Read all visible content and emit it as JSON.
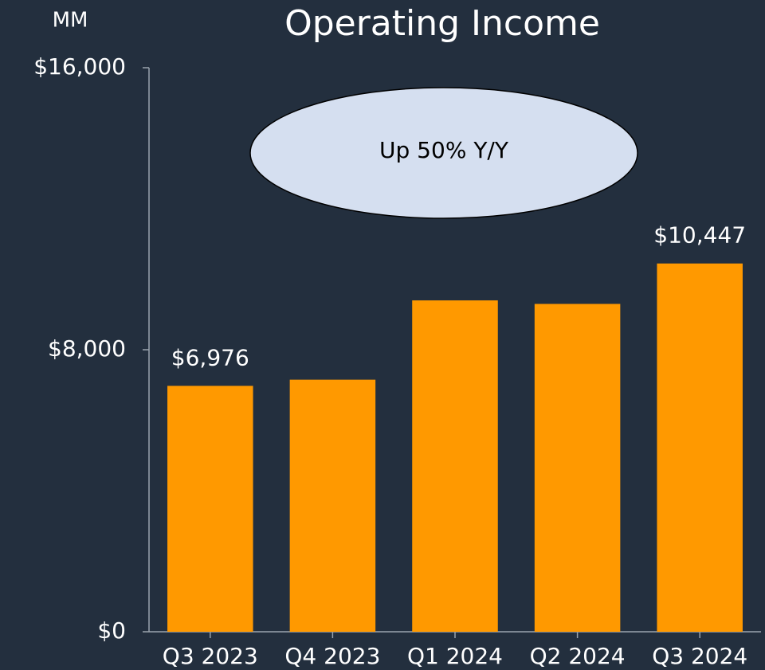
{
  "chart_data": {
    "type": "bar",
    "title": "Operating Income",
    "unit_label": "MM",
    "annotation": "Up 50% Y/Y",
    "categories": [
      "Q3 2023",
      "Q4 2023",
      "Q1 2024",
      "Q2 2024",
      "Q3 2024"
    ],
    "values": [
      6976,
      7150,
      9400,
      9300,
      10447
    ],
    "value_labels": [
      "$6,976",
      null,
      null,
      null,
      "$10,447"
    ],
    "color": "#ff9900",
    "ylim": [
      0,
      16000
    ],
    "yticks": [
      {
        "value": 0,
        "label": "$0"
      },
      {
        "value": 8000,
        "label": "$8,000"
      },
      {
        "value": 16000,
        "label": "$16,000"
      }
    ],
    "grid": false
  }
}
